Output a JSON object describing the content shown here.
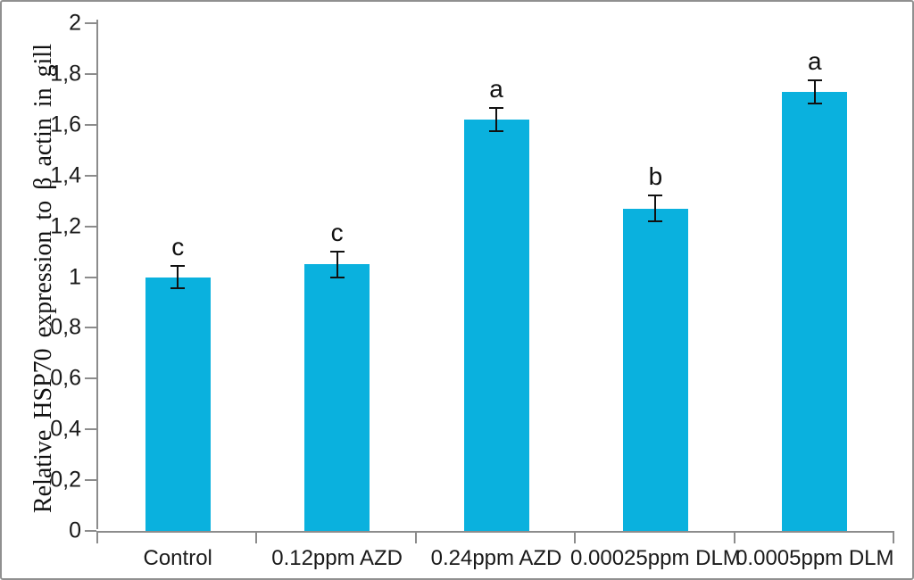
{
  "figure": {
    "background": "#ffffff",
    "border_color": "#909090"
  },
  "chart_data": {
    "type": "bar",
    "title": "",
    "xlabel": "",
    "ylabel": "Relative HSP70 expression to β actin in gill",
    "categories": [
      "Control",
      "0.12ppm AZD",
      "0.24ppm AZD",
      "0.00025ppm DLM",
      "0.0005ppm DLM"
    ],
    "values": [
      1.0,
      1.05,
      1.62,
      1.27,
      1.73
    ],
    "errors": [
      0.045,
      0.05,
      0.045,
      0.05,
      0.045
    ],
    "significance_letters": [
      "c",
      "c",
      "a",
      "b",
      "a"
    ],
    "ylim": [
      0,
      2
    ],
    "ytick_step": 0.2,
    "ytick_labels": [
      "0",
      "0,2",
      "0,4",
      "0,6",
      "0,8",
      "1",
      "1,2",
      "1,4",
      "1,6",
      "1,8",
      "2"
    ],
    "grid": false,
    "legend_position": "none",
    "bar_color": "#0ab1de",
    "axis_color": "#8c8c8c",
    "error_bar_color": "#111111",
    "text_color": "#1a1a1a"
  }
}
